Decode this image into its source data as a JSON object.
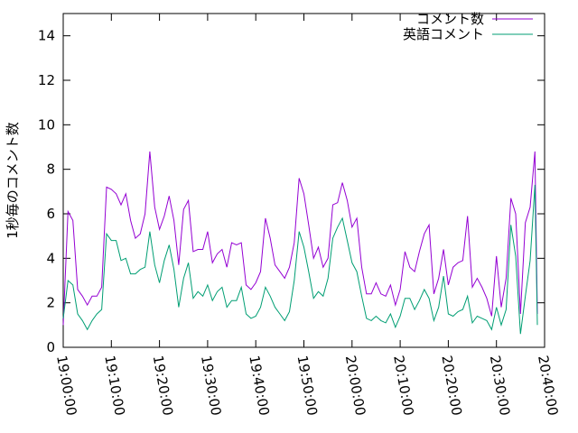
{
  "chart_data": {
    "type": "line",
    "title": "",
    "xlabel": "",
    "ylabel": "1秒毎のコメント数",
    "ylim": [
      0,
      15
    ],
    "yticks": [
      0,
      2,
      4,
      6,
      8,
      10,
      12,
      14
    ],
    "xlim": [
      "19:00:00",
      "20:40:00"
    ],
    "xticks": [
      "19:00:00",
      "19:10:00",
      "19:20:00",
      "19:30:00",
      "19:40:00",
      "19:50:00",
      "20:00:00",
      "20:10:00",
      "20:20:00",
      "20:30:00",
      "20:40:00"
    ],
    "grid": false,
    "legend_position": "top-right",
    "series": [
      {
        "name": "コメント数",
        "color": "#9400d3",
        "points": [
          [
            "19:00:00",
            1.0
          ],
          [
            "19:01:00",
            6.1
          ],
          [
            "19:02:00",
            5.7
          ],
          [
            "19:03:00",
            2.6
          ],
          [
            "19:04:00",
            2.3
          ],
          [
            "19:05:00",
            1.9
          ],
          [
            "19:06:00",
            2.3
          ],
          [
            "19:07:00",
            2.3
          ],
          [
            "19:08:00",
            2.7
          ],
          [
            "19:09:00",
            7.2
          ],
          [
            "19:10:00",
            7.1
          ],
          [
            "19:11:00",
            6.9
          ],
          [
            "19:12:00",
            6.4
          ],
          [
            "19:13:00",
            6.9
          ],
          [
            "19:14:00",
            5.7
          ],
          [
            "19:15:00",
            4.9
          ],
          [
            "19:16:00",
            5.1
          ],
          [
            "19:17:00",
            6.0
          ],
          [
            "19:18:00",
            8.8
          ],
          [
            "19:19:00",
            6.3
          ],
          [
            "19:20:00",
            5.3
          ],
          [
            "19:21:00",
            5.9
          ],
          [
            "19:22:00",
            6.8
          ],
          [
            "19:23:00",
            5.7
          ],
          [
            "19:24:00",
            3.7
          ],
          [
            "19:25:00",
            6.2
          ],
          [
            "19:26:00",
            6.6
          ],
          [
            "19:27:00",
            4.3
          ],
          [
            "19:28:00",
            4.4
          ],
          [
            "19:29:00",
            4.4
          ],
          [
            "19:30:00",
            5.2
          ],
          [
            "19:31:00",
            3.8
          ],
          [
            "19:32:00",
            4.2
          ],
          [
            "19:33:00",
            4.4
          ],
          [
            "19:34:00",
            3.6
          ],
          [
            "19:35:00",
            4.7
          ],
          [
            "19:36:00",
            4.6
          ],
          [
            "19:37:00",
            4.7
          ],
          [
            "19:38:00",
            2.8
          ],
          [
            "19:39:00",
            2.6
          ],
          [
            "19:40:00",
            2.9
          ],
          [
            "19:41:00",
            3.4
          ],
          [
            "19:42:00",
            5.8
          ],
          [
            "19:43:00",
            4.9
          ],
          [
            "19:44:00",
            3.7
          ],
          [
            "19:45:00",
            3.4
          ],
          [
            "19:46:00",
            3.1
          ],
          [
            "19:47:00",
            3.6
          ],
          [
            "19:48:00",
            4.7
          ],
          [
            "19:49:00",
            7.6
          ],
          [
            "19:50:00",
            6.9
          ],
          [
            "19:51:00",
            5.5
          ],
          [
            "19:52:00",
            4.0
          ],
          [
            "19:53:00",
            4.5
          ],
          [
            "19:54:00",
            3.6
          ],
          [
            "19:55:00",
            4.0
          ],
          [
            "19:56:00",
            6.4
          ],
          [
            "19:57:00",
            6.5
          ],
          [
            "19:58:00",
            7.4
          ],
          [
            "19:59:00",
            6.6
          ],
          [
            "20:00:00",
            5.4
          ],
          [
            "20:01:00",
            5.8
          ],
          [
            "20:02:00",
            3.6
          ],
          [
            "20:03:00",
            2.4
          ],
          [
            "20:04:00",
            2.4
          ],
          [
            "20:05:00",
            2.9
          ],
          [
            "20:06:00",
            2.4
          ],
          [
            "20:07:00",
            2.3
          ],
          [
            "20:08:00",
            2.8
          ],
          [
            "20:09:00",
            1.9
          ],
          [
            "20:10:00",
            2.6
          ],
          [
            "20:11:00",
            4.3
          ],
          [
            "20:12:00",
            3.6
          ],
          [
            "20:13:00",
            3.4
          ],
          [
            "20:14:00",
            4.3
          ],
          [
            "20:15:00",
            5.1
          ],
          [
            "20:16:00",
            5.5
          ],
          [
            "20:17:00",
            2.4
          ],
          [
            "20:18:00",
            3.1
          ],
          [
            "20:19:00",
            4.4
          ],
          [
            "20:20:00",
            2.8
          ],
          [
            "20:21:00",
            3.6
          ],
          [
            "20:22:00",
            3.8
          ],
          [
            "20:23:00",
            3.9
          ],
          [
            "20:24:00",
            5.9
          ],
          [
            "20:25:00",
            2.7
          ],
          [
            "20:26:00",
            3.1
          ],
          [
            "20:27:00",
            2.7
          ],
          [
            "20:28:00",
            2.2
          ],
          [
            "20:29:00",
            1.4
          ],
          [
            "20:30:00",
            4.1
          ],
          [
            "20:31:00",
            1.8
          ],
          [
            "20:32:00",
            3.1
          ],
          [
            "20:33:00",
            6.7
          ],
          [
            "20:34:00",
            6.0
          ],
          [
            "20:35:00",
            1.5
          ],
          [
            "20:36:00",
            5.6
          ],
          [
            "20:37:00",
            6.3
          ],
          [
            "20:38:00",
            8.8
          ],
          [
            "20:38:30",
            1.5
          ]
        ]
      },
      {
        "name": "英語コメント",
        "color": "#009e73",
        "points": [
          [
            "19:00:00",
            1.3
          ],
          [
            "19:01:00",
            3.0
          ],
          [
            "19:02:00",
            2.8
          ],
          [
            "19:03:00",
            1.5
          ],
          [
            "19:04:00",
            1.2
          ],
          [
            "19:05:00",
            0.8
          ],
          [
            "19:06:00",
            1.2
          ],
          [
            "19:07:00",
            1.5
          ],
          [
            "19:08:00",
            1.7
          ],
          [
            "19:09:00",
            5.1
          ],
          [
            "19:10:00",
            4.8
          ],
          [
            "19:11:00",
            4.8
          ],
          [
            "19:12:00",
            3.9
          ],
          [
            "19:13:00",
            4.0
          ],
          [
            "19:14:00",
            3.3
          ],
          [
            "19:15:00",
            3.3
          ],
          [
            "19:16:00",
            3.5
          ],
          [
            "19:17:00",
            3.6
          ],
          [
            "19:18:00",
            5.2
          ],
          [
            "19:19:00",
            3.7
          ],
          [
            "19:20:00",
            2.9
          ],
          [
            "19:21:00",
            3.9
          ],
          [
            "19:22:00",
            4.6
          ],
          [
            "19:23:00",
            3.5
          ],
          [
            "19:24:00",
            1.8
          ],
          [
            "19:25:00",
            3.1
          ],
          [
            "19:26:00",
            3.8
          ],
          [
            "19:27:00",
            2.2
          ],
          [
            "19:28:00",
            2.5
          ],
          [
            "19:29:00",
            2.3
          ],
          [
            "19:30:00",
            2.8
          ],
          [
            "19:31:00",
            2.1
          ],
          [
            "19:32:00",
            2.5
          ],
          [
            "19:33:00",
            2.7
          ],
          [
            "19:34:00",
            1.8
          ],
          [
            "19:35:00",
            2.1
          ],
          [
            "19:36:00",
            2.1
          ],
          [
            "19:37:00",
            2.7
          ],
          [
            "19:38:00",
            1.5
          ],
          [
            "19:39:00",
            1.3
          ],
          [
            "19:40:00",
            1.4
          ],
          [
            "19:41:00",
            1.8
          ],
          [
            "19:42:00",
            2.7
          ],
          [
            "19:43:00",
            2.3
          ],
          [
            "19:44:00",
            1.8
          ],
          [
            "19:45:00",
            1.5
          ],
          [
            "19:46:00",
            1.2
          ],
          [
            "19:47:00",
            1.6
          ],
          [
            "19:48:00",
            3.0
          ],
          [
            "19:49:00",
            5.2
          ],
          [
            "19:50:00",
            4.5
          ],
          [
            "19:51:00",
            3.4
          ],
          [
            "19:52:00",
            2.2
          ],
          [
            "19:53:00",
            2.5
          ],
          [
            "19:54:00",
            2.3
          ],
          [
            "19:55:00",
            3.1
          ],
          [
            "19:56:00",
            4.9
          ],
          [
            "19:57:00",
            5.4
          ],
          [
            "19:58:00",
            5.8
          ],
          [
            "19:59:00",
            4.8
          ],
          [
            "20:00:00",
            3.8
          ],
          [
            "20:01:00",
            3.4
          ],
          [
            "20:02:00",
            2.3
          ],
          [
            "20:03:00",
            1.3
          ],
          [
            "20:04:00",
            1.2
          ],
          [
            "20:05:00",
            1.4
          ],
          [
            "20:06:00",
            1.2
          ],
          [
            "20:07:00",
            1.1
          ],
          [
            "20:08:00",
            1.5
          ],
          [
            "20:09:00",
            0.9
          ],
          [
            "20:10:00",
            1.4
          ],
          [
            "20:11:00",
            2.2
          ],
          [
            "20:12:00",
            2.2
          ],
          [
            "20:13:00",
            1.7
          ],
          [
            "20:14:00",
            2.1
          ],
          [
            "20:15:00",
            2.6
          ],
          [
            "20:16:00",
            2.2
          ],
          [
            "20:17:00",
            1.2
          ],
          [
            "20:18:00",
            1.8
          ],
          [
            "20:19:00",
            3.2
          ],
          [
            "20:20:00",
            1.5
          ],
          [
            "20:21:00",
            1.4
          ],
          [
            "20:22:00",
            1.6
          ],
          [
            "20:23:00",
            1.7
          ],
          [
            "20:24:00",
            2.3
          ],
          [
            "20:25:00",
            1.1
          ],
          [
            "20:26:00",
            1.4
          ],
          [
            "20:27:00",
            1.3
          ],
          [
            "20:28:00",
            1.2
          ],
          [
            "20:29:00",
            0.8
          ],
          [
            "20:30:00",
            1.8
          ],
          [
            "20:31:00",
            1.0
          ],
          [
            "20:32:00",
            1.7
          ],
          [
            "20:33:00",
            5.5
          ],
          [
            "20:34:00",
            4.1
          ],
          [
            "20:35:00",
            0.6
          ],
          [
            "20:36:00",
            2.3
          ],
          [
            "20:37:00",
            3.9
          ],
          [
            "20:38:00",
            7.3
          ],
          [
            "20:38:30",
            1.0
          ]
        ]
      }
    ]
  }
}
